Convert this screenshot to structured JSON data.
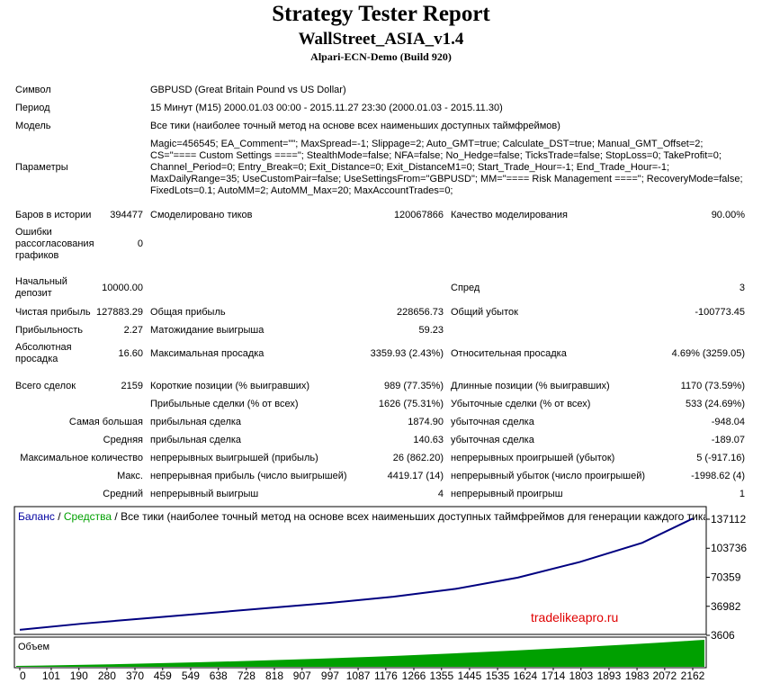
{
  "header": {
    "title": "Strategy Tester Report",
    "expert": "WallStreet_ASIA_v1.4",
    "server": "Alpari-ECN-Demo (Build 920)"
  },
  "info": [
    {
      "label": "Символ",
      "value": "GBPUSD (Great Britain Pound vs US Dollar)"
    },
    {
      "label": "Период",
      "value": "15 Минут (M15) 2000.01.03 00:00 - 2015.11.27 23:30 (2000.01.03 - 2015.11.30)"
    },
    {
      "label": "Модель",
      "value": "Все тики (наиболее точный метод на основе всех наименьших доступных таймфреймов)"
    }
  ],
  "parameters": {
    "label": "Параметры",
    "lines": [
      "Magic=456545; EA_Comment=\"\"; MaxSpread=-1; Slippage=2; Auto_GMT=true; Calculate_DST=true; Manual_GMT_Offset=2;",
      "CS=\"==== Custom Settings ====\"; StealthMode=false; NFA=false; No_Hedge=false; TicksTrade=false; StopLoss=0; TakeProfit=0;",
      "Channel_Period=0; Entry_Break=0; Exit_Distance=0; Exit_DistanceM1=0; Start_Trade_Hour=-1; End_Trade_Hour=-1;",
      "MaxDailyRange=35; UseCustomPair=false; UseSettingsFrom=\"GBPUSD\"; MM=\"==== Risk Management ====\"; RecoveryMode=false;",
      "FixedLots=0.1; AutoMM=2; AutoMM_Max=20; MaxAccountTrades=0;"
    ]
  },
  "stats": [
    [
      "Баров в истории",
      "394477",
      "Смоделировано тиков",
      "120067866",
      "Качество моделирования",
      "90.00%"
    ],
    [
      "Ошибки рассогласования графиков",
      "0",
      null,
      null,
      null,
      null
    ],
    [
      "Начальный депозит",
      "10000.00",
      null,
      null,
      "Спред",
      "3"
    ],
    [
      "Чистая прибыль",
      "127883.29",
      "Общая прибыль",
      "228656.73",
      "Общий убыток",
      "-100773.45"
    ],
    [
      "Прибыльность",
      "2.27",
      "Матожидание выигрыша",
      "59.23",
      null,
      null
    ],
    [
      "Абсолютная просадка",
      "16.60",
      "Максимальная просадка",
      "3359.93 (2.43%)",
      "Относительная просадка",
      "4.69% (3259.05)"
    ],
    [
      "Всего сделок",
      "2159",
      "Короткие позиции (% выигравших)",
      "989 (77.35%)",
      "Длинные позиции (% выигравших)",
      "1170 (73.59%)"
    ],
    [
      null,
      null,
      "Прибыльные сделки (% от всех)",
      "1626 (75.31%)",
      "Убыточные сделки (% от всех)",
      "533 (24.69%)"
    ],
    [
      "Самая большая",
      null,
      "прибыльная сделка",
      "1874.90",
      "убыточная сделка",
      "-948.04"
    ],
    [
      "Средняя",
      null,
      "прибыльная сделка",
      "140.63",
      "убыточная сделка",
      "-189.07"
    ],
    [
      "Максимальное количество",
      null,
      "непрерывных выигрышей (прибыль)",
      "26 (862.20)",
      "непрерывных проигрышей (убыток)",
      "5 (-917.16)"
    ],
    [
      "Макс.",
      null,
      "непрерывная прибыль (число выигрышей)",
      "4419.17 (14)",
      "непрерывный убыток (число проигрышей)",
      "-1998.62 (4)"
    ],
    [
      "Средний",
      null,
      "непрерывный выигрыш",
      "4",
      "непрерывный проигрыш",
      "1"
    ]
  ],
  "chart": {
    "legend_balance": "Баланс",
    "legend_equity": "Средства",
    "legend_model": "Все тики (наиболее точный метод на основе всех наименьших доступных таймфреймов для генерации каждого тика)",
    "volume_label": "Объем",
    "watermark": "tradelikeapro.ru",
    "ylim": [
      3606,
      137112
    ],
    "yticks": [
      137112,
      103736,
      70359,
      36982,
      3606
    ],
    "xlim": [
      0,
      2162
    ],
    "xticks": [
      0,
      101,
      190,
      280,
      370,
      459,
      549,
      638,
      728,
      818,
      907,
      997,
      1087,
      1176,
      1266,
      1355,
      1445,
      1535,
      1624,
      1714,
      1803,
      1893,
      1983,
      2072,
      2162
    ],
    "x": [
      0,
      200,
      400,
      600,
      800,
      1000,
      1200,
      1400,
      1600,
      1800,
      2000,
      2162
    ],
    "values": [
      10000,
      17000,
      23000,
      29000,
      35000,
      41000,
      48000,
      57000,
      70000,
      88000,
      110000,
      137883
    ]
  }
}
